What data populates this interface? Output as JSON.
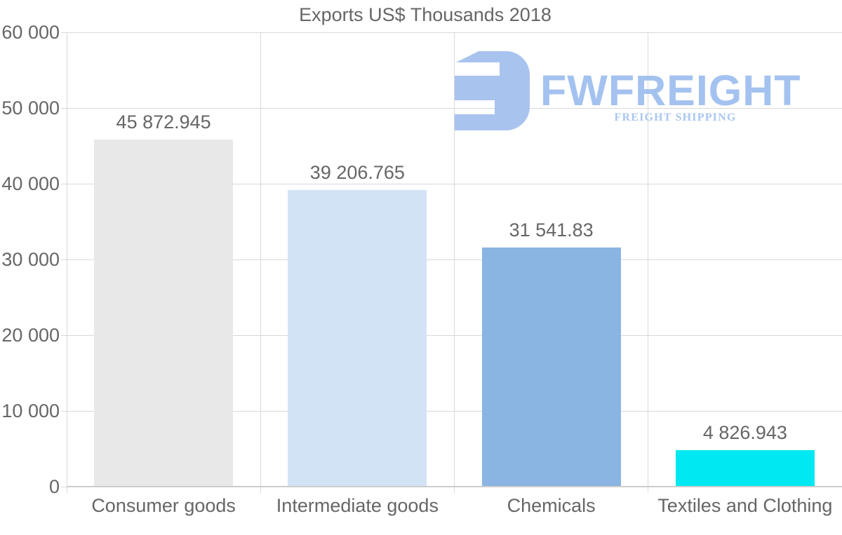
{
  "chart_data": {
    "type": "bar",
    "title": "Exports US$ Thousands 2018",
    "categories": [
      "Consumer goods",
      "Intermediate goods",
      "Chemicals",
      "Textiles and Clothing"
    ],
    "values": [
      45872.945,
      39206.765,
      31541.83,
      4826.943
    ],
    "value_labels": [
      "45 872.945",
      "39 206.765",
      "31 541.83",
      "4 826.943"
    ],
    "bar_colors": [
      "#e8e8e8",
      "#d3e3f6",
      "#8ab4e2",
      "#00e9f2"
    ],
    "ylim": [
      0,
      60000
    ],
    "ytick_values": [
      0,
      10000,
      20000,
      30000,
      40000,
      50000,
      60000
    ],
    "ytick_labels": [
      "0",
      "10 000",
      "20 000",
      "30 000",
      "40 000",
      "50 000",
      "60 000"
    ],
    "grid": true,
    "legend": "none",
    "text_color": "#666666",
    "grid_color": "#d9d9d9"
  },
  "watermark": {
    "brand": "FWFREIGHT",
    "tagline": "FREIGHT SHIPPING",
    "color": "#a5c2ef"
  }
}
